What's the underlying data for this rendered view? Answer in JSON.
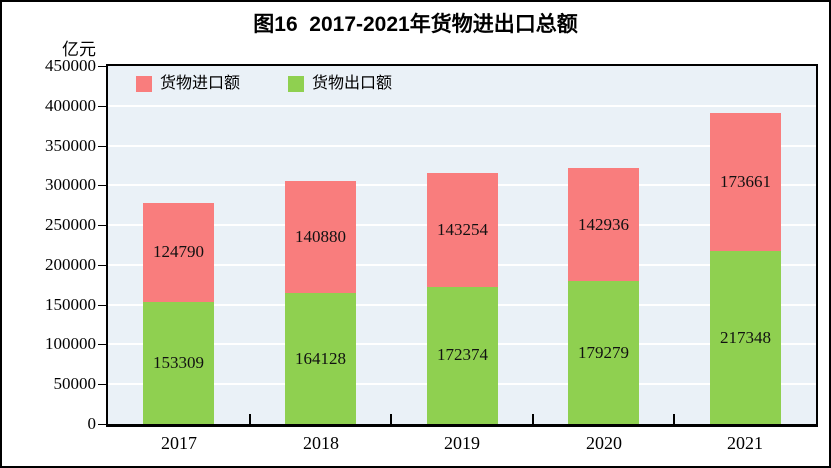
{
  "chart_data": {
    "type": "bar",
    "variant": "stacked-column",
    "title": "图16  2017-2021年货物进出口总额",
    "unit_label": "亿元",
    "categories": [
      "2017",
      "2018",
      "2019",
      "2020",
      "2021"
    ],
    "series": [
      {
        "name": "货物进口额",
        "stack": "top",
        "color": "#F97D7D",
        "values": [
          124790,
          140880,
          143254,
          142936,
          173661
        ]
      },
      {
        "name": "货物出口额",
        "stack": "bottom",
        "color": "#8FD050",
        "values": [
          153309,
          164128,
          172374,
          179279,
          217348
        ]
      }
    ],
    "ylim": [
      0,
      450000
    ],
    "ytick_step": 50000,
    "yticks": [
      0,
      50000,
      100000,
      150000,
      200000,
      250000,
      300000,
      350000,
      400000,
      450000
    ],
    "legend_position": "top-left-inside",
    "grid": {
      "horizontal": true,
      "color": "#FFFFFF"
    },
    "plot_bg": "#EAF1F7",
    "axis_color": "#000000",
    "value_labels": "centered-inside-segments"
  }
}
